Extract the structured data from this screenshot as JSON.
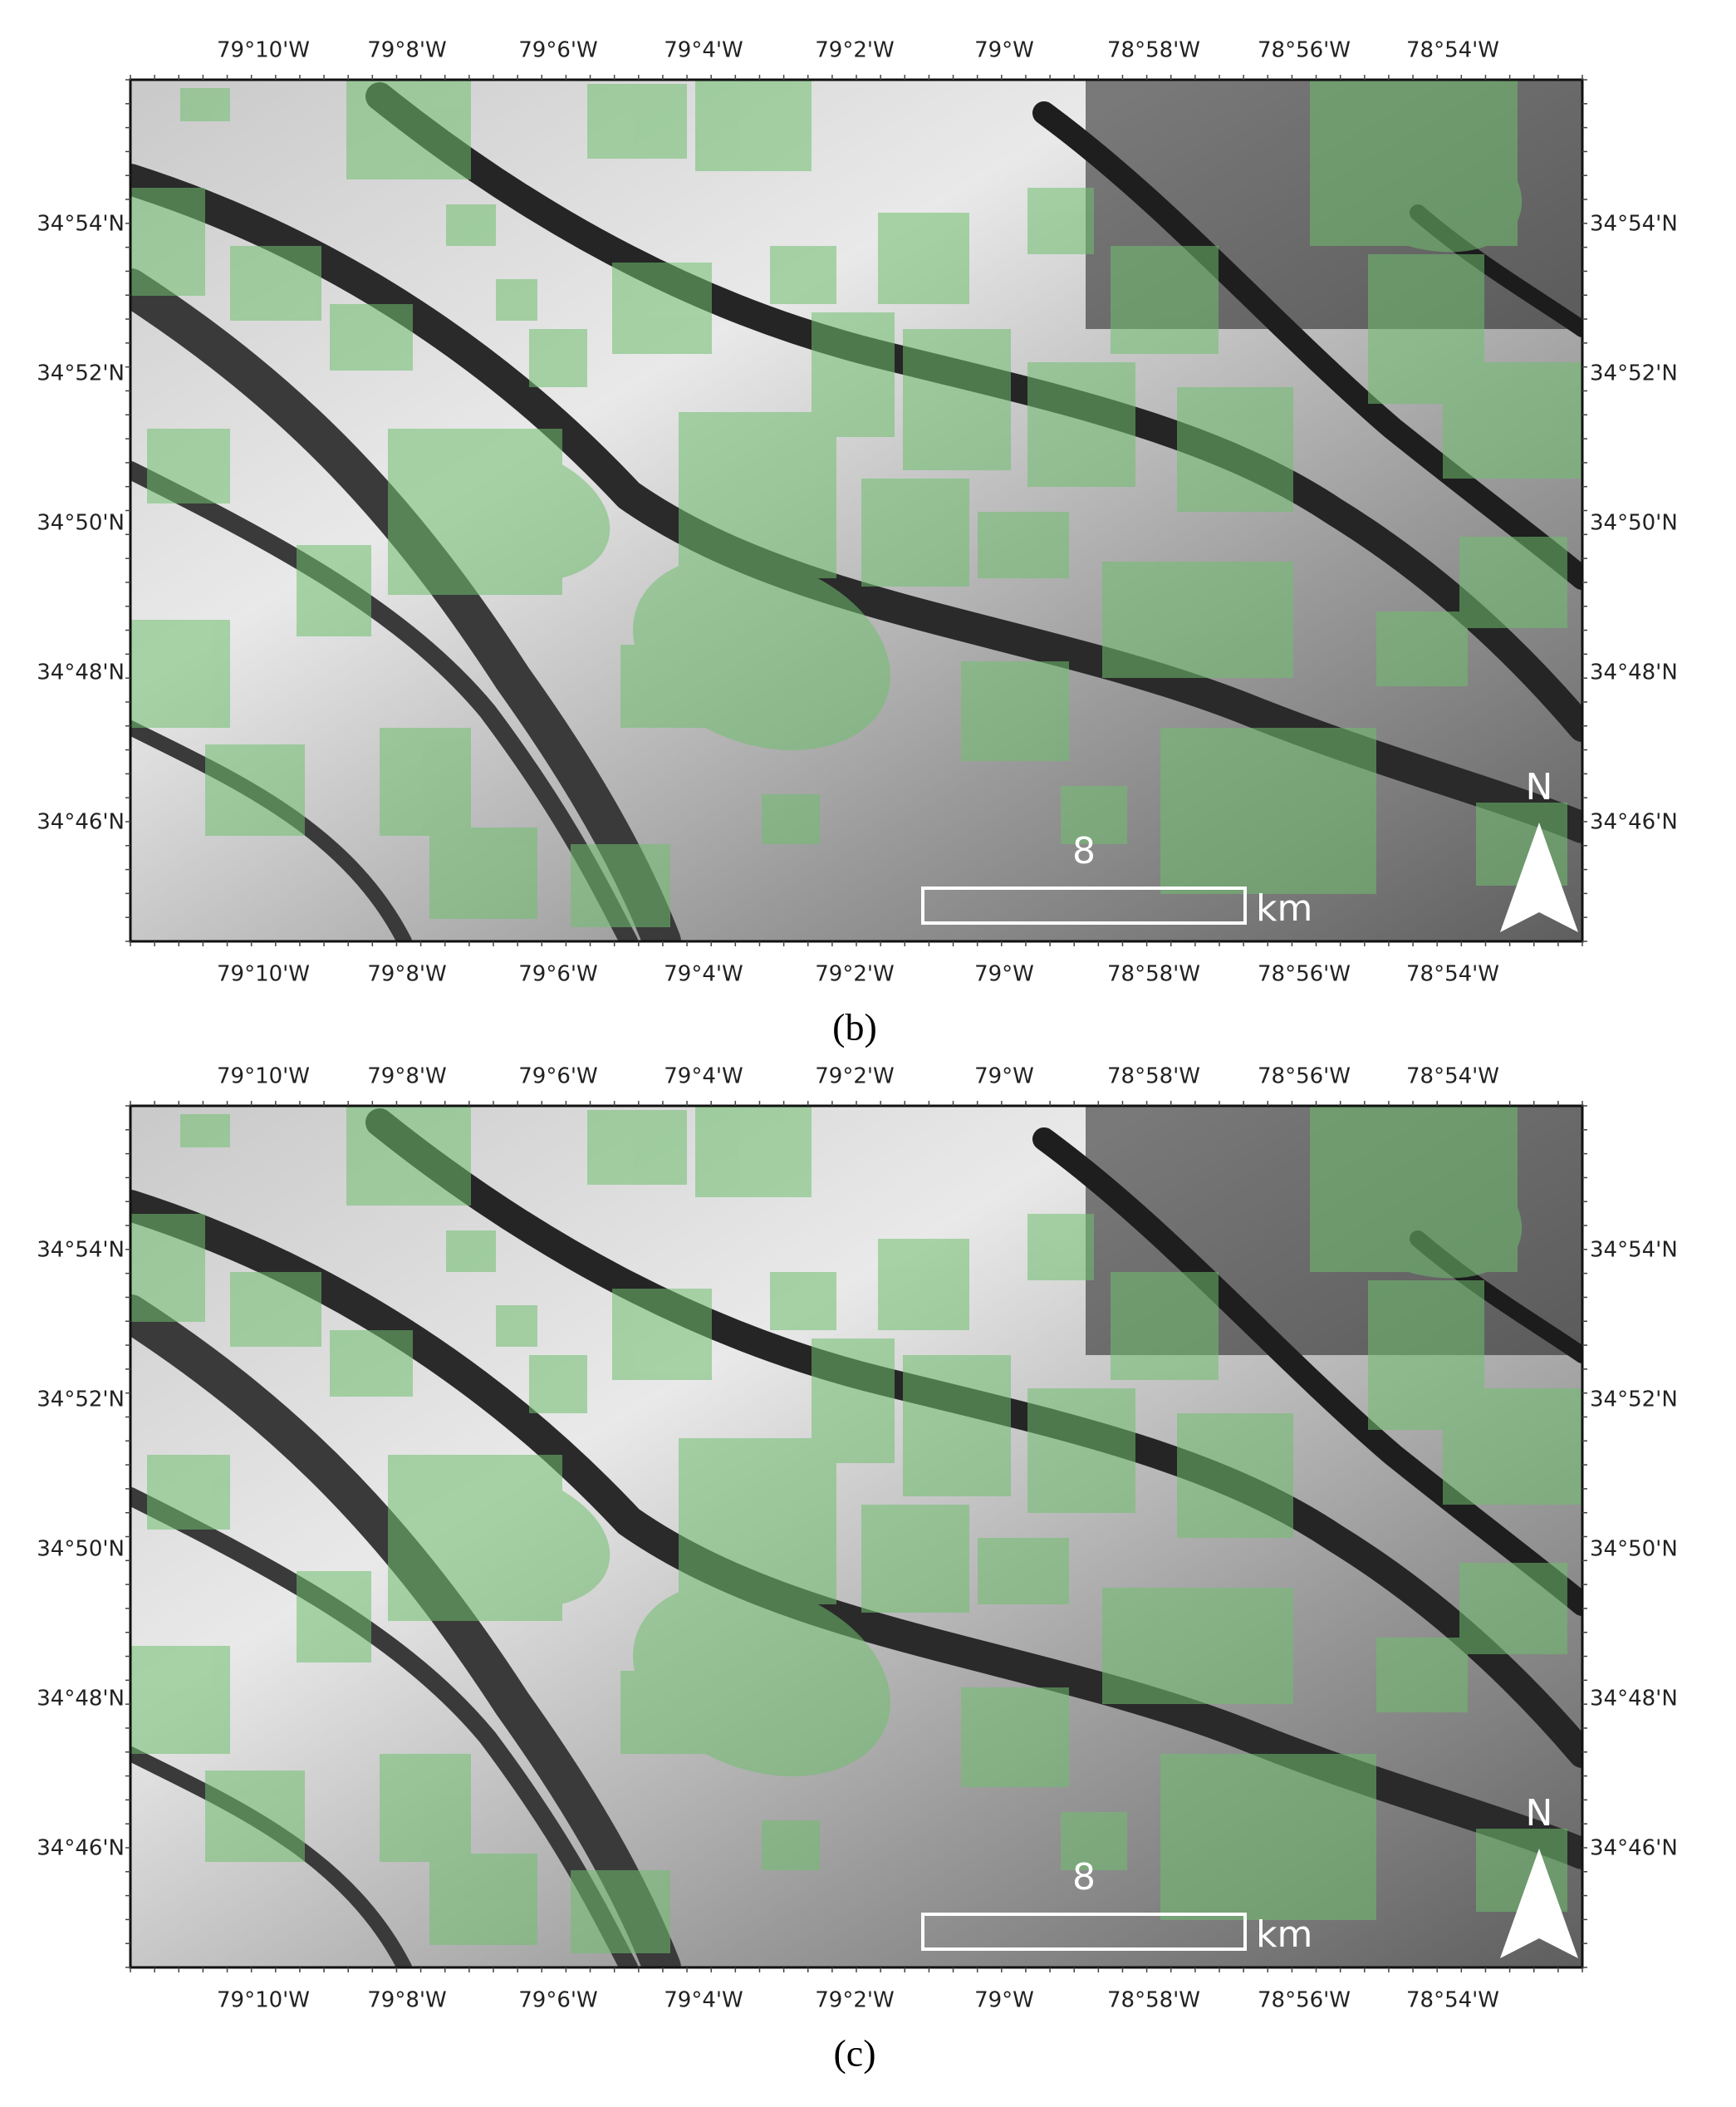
{
  "panels": [
    {
      "label": "(b)",
      "longitudes_top": [
        "79°10'W",
        "79°8'W",
        "79°6'W",
        "79°4'W",
        "79°2'W",
        "79°W",
        "78°58'W",
        "78°56'W",
        "78°54'W"
      ],
      "longitudes_bottom": [
        "79°10'W",
        "79°8'W",
        "79°6'W",
        "79°4'W",
        "79°2'W",
        "79°W",
        "78°58'W",
        "78°56'W",
        "78°54'W"
      ],
      "latitudes_left": [
        "34°54'N",
        "34°52'N",
        "34°50'N",
        "34°48'N",
        "34°46'N"
      ],
      "latitudes_right": [
        "34°54'N",
        "34°52'N",
        "34°50'N",
        "34°48'N",
        "34°46'N"
      ],
      "scale_value": "8",
      "scale_unit": "km",
      "north": "N"
    },
    {
      "label": "(c)",
      "longitudes_top": [
        "79°10'W",
        "79°8'W",
        "79°6'W",
        "79°4'W",
        "79°2'W",
        "79°W",
        "78°58'W",
        "78°56'W",
        "78°54'W"
      ],
      "longitudes_bottom": [
        "79°10'W",
        "79°8'W",
        "79°6'W",
        "79°4'W",
        "79°2'W",
        "79°W",
        "78°58'W",
        "78°56'W",
        "78°54'W"
      ],
      "latitudes_left": [
        "34°54'N",
        "34°52'N",
        "34°50'N",
        "34°48'N",
        "34°46'N"
      ],
      "latitudes_right": [
        "34°54'N",
        "34°52'N",
        "34°50'N",
        "34°48'N",
        "34°46'N"
      ],
      "scale_value": "8",
      "scale_unit": "km",
      "north": "N"
    }
  ]
}
